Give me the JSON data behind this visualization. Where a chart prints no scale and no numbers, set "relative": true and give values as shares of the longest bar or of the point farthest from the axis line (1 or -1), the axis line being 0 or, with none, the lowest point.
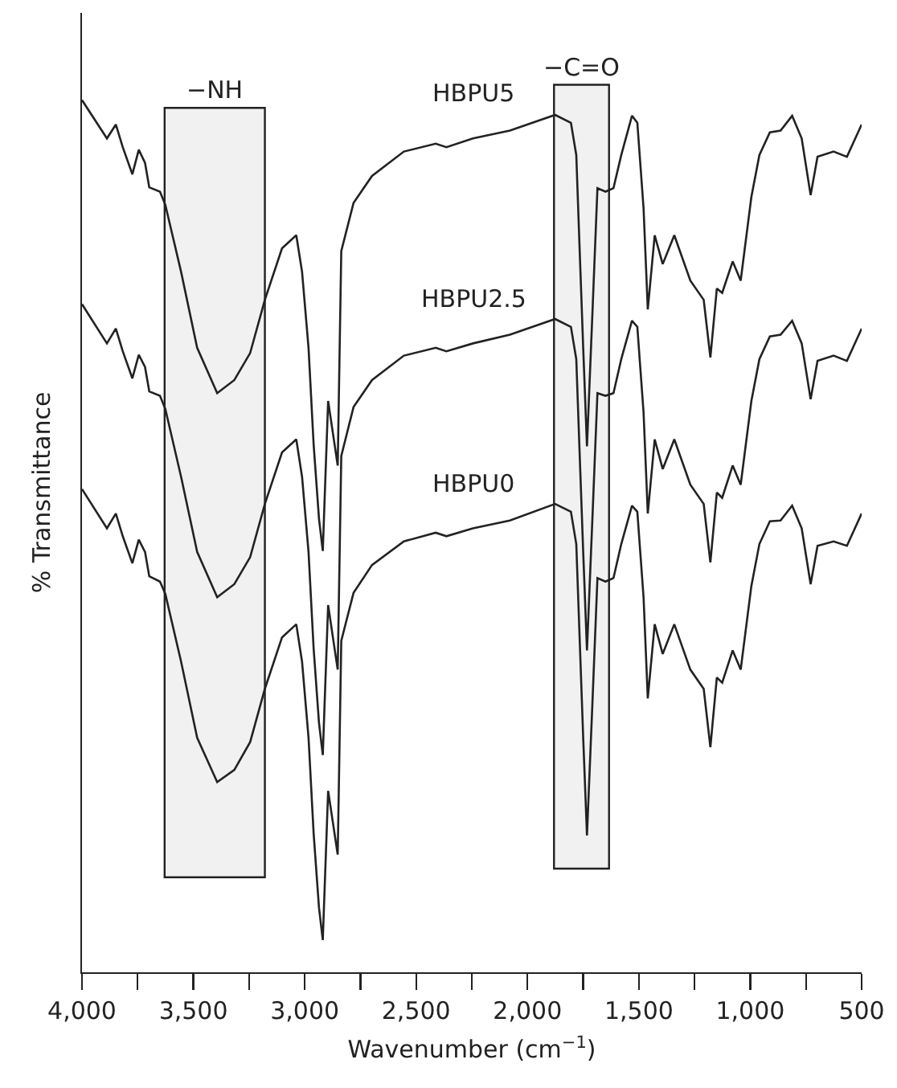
{
  "chart_data": {
    "type": "line",
    "relative": true,
    "xlabel": "Wavenumber (cm$^{−1}$)",
    "ylabel": "% Transmittance",
    "x": [
      4000,
      3888,
      3848,
      3817,
      3774,
      3745,
      3717,
      3698,
      3650,
      3626,
      3555,
      3483,
      3393,
      3316,
      3245,
      3179,
      3102,
      3038,
      3012,
      2983,
      2960,
      2936,
      2919,
      2895,
      2852,
      2836,
      2781,
      2698,
      2555,
      2412,
      2364,
      2245,
      2079,
      1876,
      1805,
      1781,
      1764,
      1750,
      1733,
      1709,
      1686,
      1650,
      1614,
      1579,
      1531,
      1507,
      1479,
      1460,
      1429,
      1393,
      1341,
      1269,
      1209,
      1179,
      1150,
      1126,
      1079,
      1043,
      995,
      959,
      912,
      864,
      812,
      769,
      729,
      698,
      626,
      566,
      500
    ],
    "series": [
      {
        "name": "HBPU5",
        "color": "#222222",
        "values": [
          1.0,
          0.956,
          0.972,
          0.946,
          0.915,
          0.943,
          0.928,
          0.9,
          0.895,
          0.88,
          0.803,
          0.716,
          0.664,
          0.679,
          0.71,
          0.771,
          0.83,
          0.845,
          0.803,
          0.716,
          0.605,
          0.52,
          0.483,
          0.655,
          0.581,
          0.827,
          0.882,
          0.913,
          0.941,
          0.95,
          0.946,
          0.956,
          0.965,
          0.983,
          0.974,
          0.937,
          0.815,
          0.716,
          0.603,
          0.753,
          0.899,
          0.895,
          0.899,
          0.937,
          0.982,
          0.974,
          0.876,
          0.76,
          0.845,
          0.812,
          0.845,
          0.793,
          0.771,
          0.705,
          0.784,
          0.779,
          0.815,
          0.793,
          0.889,
          0.937,
          0.963,
          0.965,
          0.982,
          0.956,
          0.891,
          0.935,
          0.941,
          0.935,
          0.972
        ]
      },
      {
        "name": "HBPU2.5",
        "color": "#222222",
        "values": [
          0.766,
          0.721,
          0.738,
          0.712,
          0.681,
          0.708,
          0.694,
          0.666,
          0.661,
          0.646,
          0.568,
          0.482,
          0.43,
          0.445,
          0.476,
          0.537,
          0.596,
          0.611,
          0.568,
          0.482,
          0.371,
          0.286,
          0.249,
          0.421,
          0.347,
          0.592,
          0.648,
          0.679,
          0.707,
          0.716,
          0.712,
          0.721,
          0.731,
          0.749,
          0.74,
          0.703,
          0.581,
          0.482,
          0.369,
          0.518,
          0.664,
          0.661,
          0.664,
          0.703,
          0.747,
          0.74,
          0.642,
          0.526,
          0.611,
          0.577,
          0.611,
          0.559,
          0.537,
          0.47,
          0.55,
          0.544,
          0.581,
          0.559,
          0.655,
          0.703,
          0.729,
          0.731,
          0.747,
          0.721,
          0.657,
          0.701,
          0.707,
          0.701,
          0.738
        ]
      },
      {
        "name": "HBPU0",
        "color": "#222222",
        "values": [
          0.554,
          0.509,
          0.526,
          0.5,
          0.469,
          0.496,
          0.482,
          0.454,
          0.448,
          0.434,
          0.356,
          0.269,
          0.218,
          0.232,
          0.264,
          0.325,
          0.384,
          0.399,
          0.356,
          0.269,
          0.159,
          0.074,
          0.037,
          0.208,
          0.135,
          0.38,
          0.435,
          0.467,
          0.494,
          0.504,
          0.5,
          0.509,
          0.518,
          0.537,
          0.528,
          0.491,
          0.369,
          0.269,
          0.157,
          0.306,
          0.452,
          0.448,
          0.452,
          0.491,
          0.535,
          0.528,
          0.43,
          0.314,
          0.399,
          0.365,
          0.399,
          0.347,
          0.325,
          0.258,
          0.338,
          0.332,
          0.369,
          0.347,
          0.443,
          0.491,
          0.517,
          0.518,
          0.535,
          0.509,
          0.445,
          0.489,
          0.494,
          0.489,
          0.526
        ]
      }
    ],
    "xlim": [
      4000,
      500
    ],
    "xticks": [
      {
        "value": 4000,
        "label": "4,000"
      },
      {
        "value": 3750,
        "label": null
      },
      {
        "value": 3500,
        "label": "3,500"
      },
      {
        "value": 3250,
        "label": null
      },
      {
        "value": 3000,
        "label": "3,000"
      },
      {
        "value": 2750,
        "label": null
      },
      {
        "value": 2500,
        "label": "2,500"
      },
      {
        "value": 2250,
        "label": null
      },
      {
        "value": 2000,
        "label": "2,000"
      },
      {
        "value": 1750,
        "label": null
      },
      {
        "value": 1500,
        "label": "1,500"
      },
      {
        "value": 1250,
        "label": null
      },
      {
        "value": 1000,
        "label": "1,000"
      },
      {
        "value": 750,
        "label": null
      },
      {
        "value": 500,
        "label": "500"
      }
    ],
    "bands": [
      {
        "axis": "x",
        "from": 3629,
        "to": 3179,
        "label": "−NH",
        "color": "#222222"
      },
      {
        "axis": "x",
        "from": 1881,
        "to": 1634,
        "label": "−C=O",
        "color": "#222222"
      }
    ],
    "grid": false,
    "legend": false,
    "marker": "none",
    "line_style": "solid"
  }
}
